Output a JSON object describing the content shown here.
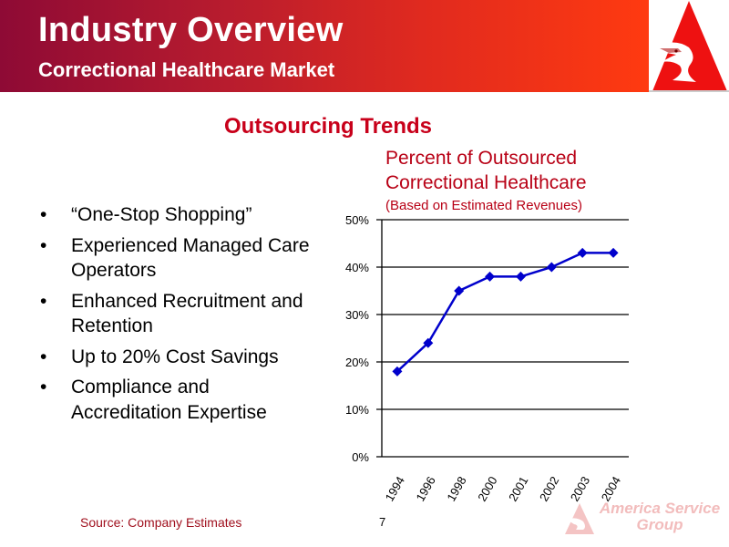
{
  "header": {
    "title": "Industry Overview",
    "subtitle": "Correctional Healthcare Market",
    "logo_icon": "eagle-triangle-logo-icon"
  },
  "section_title": "Outsourcing Trends",
  "bullets": [
    {
      "text": "“One-Stop Shopping”"
    },
    {
      "text": "Experienced Managed Care Operators"
    },
    {
      "text": "Enhanced Recruitment and Retention"
    },
    {
      "text": "Up to 20% Cost Savings"
    },
    {
      "text": "Compliance and Accreditation Expertise"
    }
  ],
  "bullet_glyph": "•",
  "chart_data": {
    "type": "line",
    "title": "Percent of Outsourced Correctional Healthcare",
    "subtitle": "(Based on Estimated Revenues)",
    "xlabel": "",
    "ylabel": "",
    "categories": [
      "1994",
      "1996",
      "1998",
      "2000",
      "2001",
      "2002",
      "2003",
      "2004"
    ],
    "series": [
      {
        "name": "Percent Outsourced",
        "values": [
          18,
          24,
          35,
          38,
          38,
          40,
          43,
          43
        ],
        "color": "#0000cc",
        "marker": "diamond"
      }
    ],
    "ylim": [
      0,
      50
    ],
    "yticks": [
      0,
      10,
      20,
      30,
      40,
      50
    ],
    "ytick_labels": [
      "0%",
      "10%",
      "20%",
      "30%",
      "40%",
      "50%"
    ],
    "grid": true,
    "legend": "none"
  },
  "footer": {
    "source": "Source: Company Estimates",
    "page_number": "7",
    "brand_line1": "America Service",
    "brand_line2": "Group"
  },
  "colors": {
    "banner_start": "#8e0a35",
    "banner_end": "#ff3a10",
    "accent_red": "#c8001a",
    "line_blue": "#0000cc"
  }
}
